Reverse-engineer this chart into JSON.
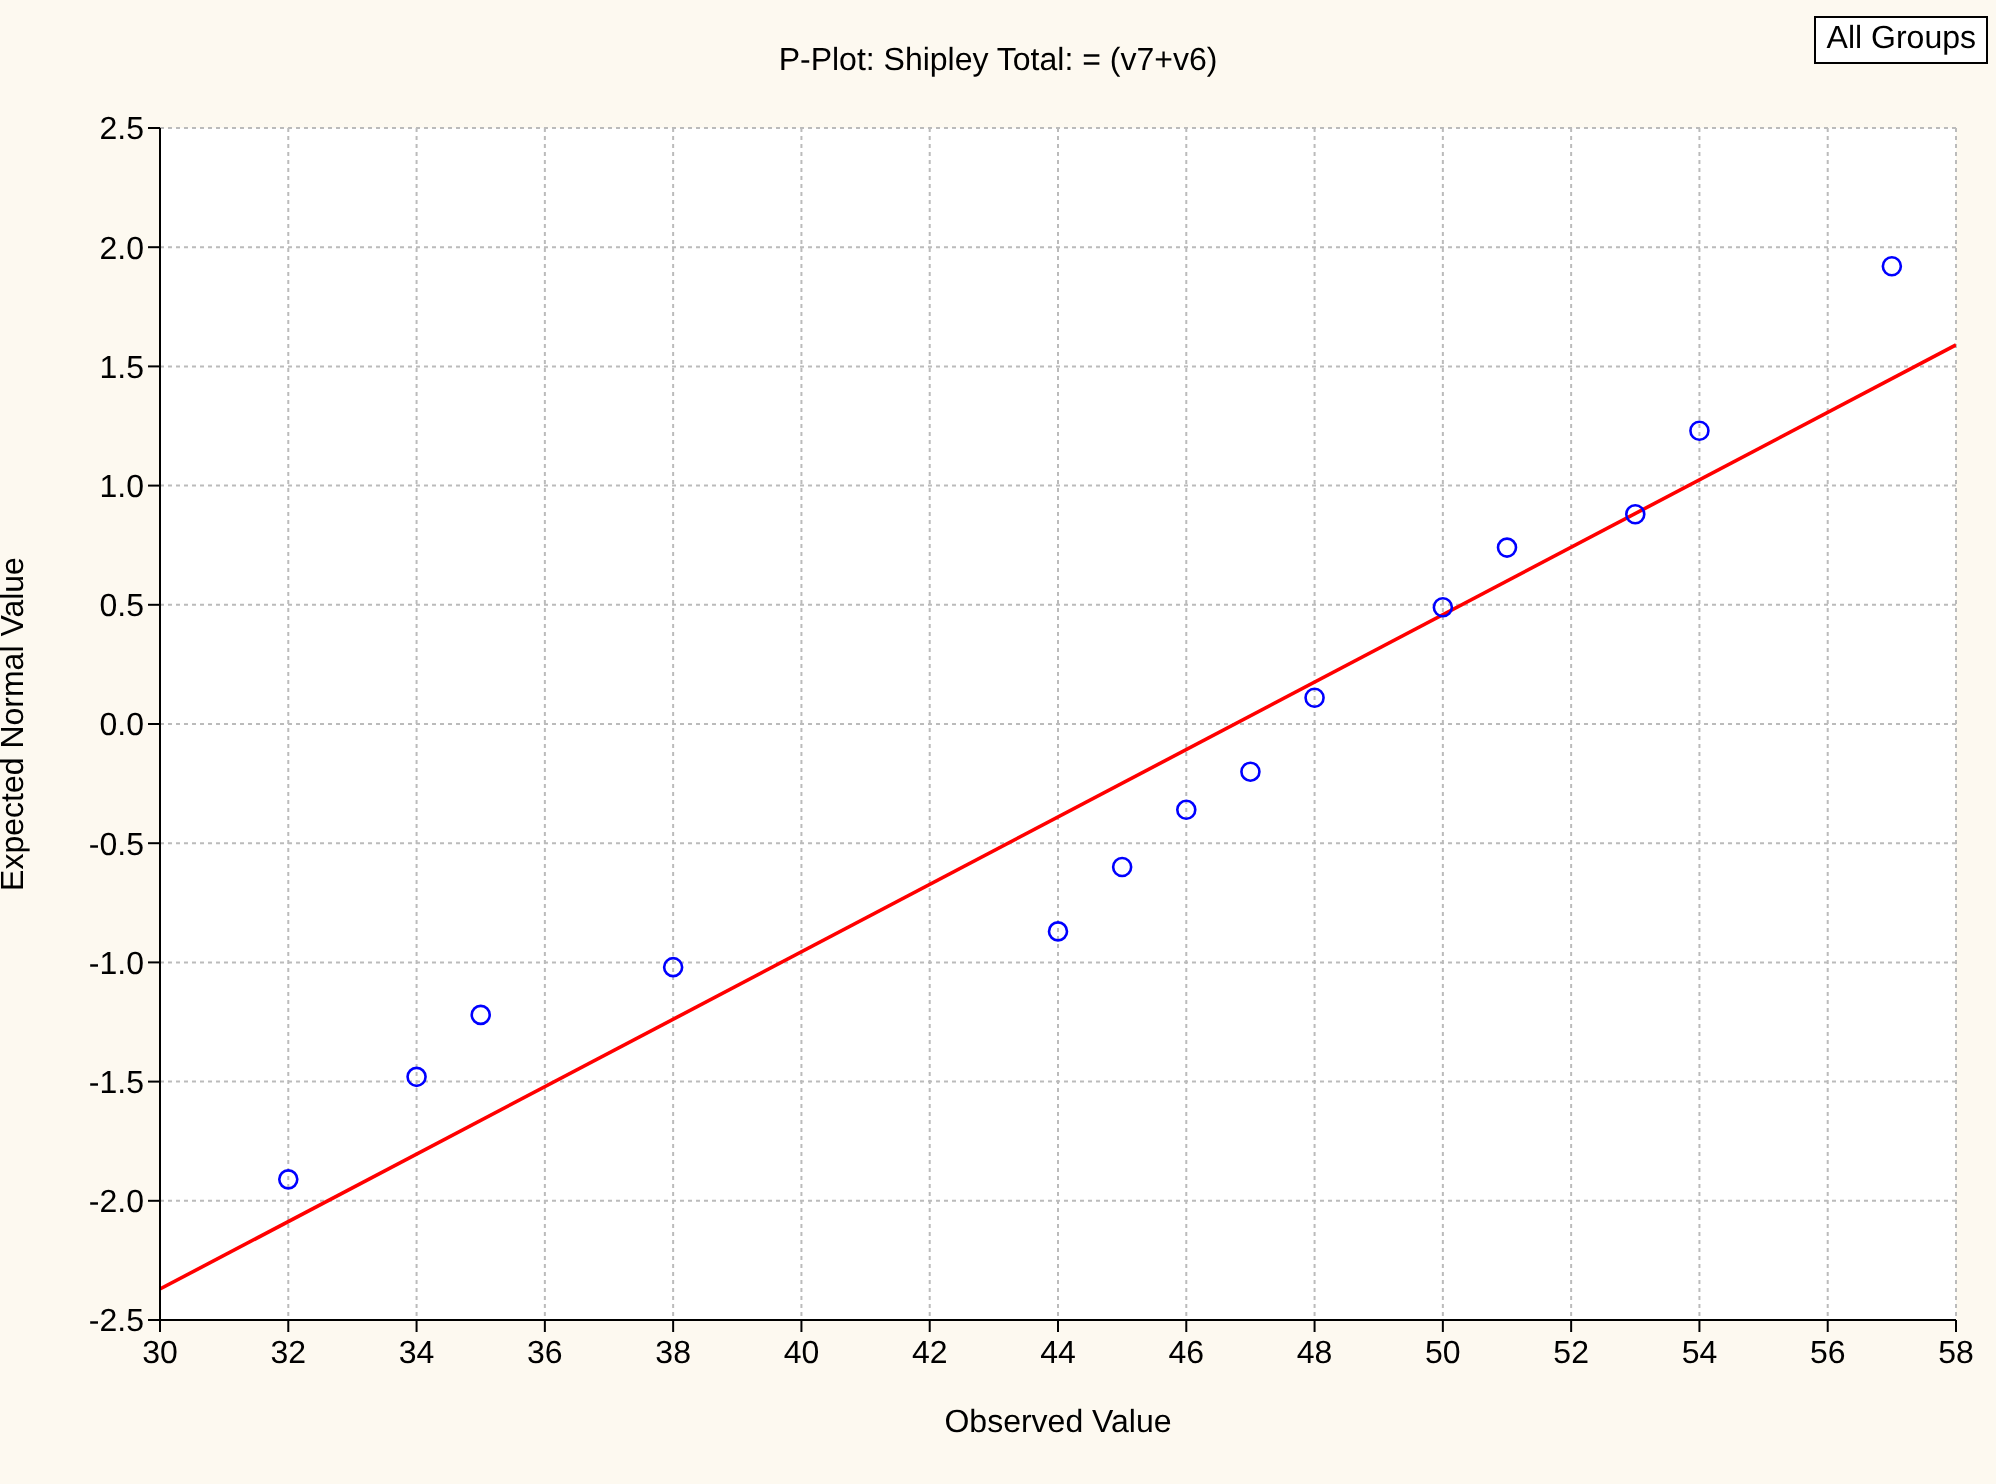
{
  "chart_data": {
    "type": "scatter",
    "title": "P-Plot: Shipley Total: = (v7+v6)",
    "xlabel": "Observed Value",
    "ylabel": "Expected Normal Value",
    "annotations": [
      "All Groups"
    ],
    "xlim": [
      30,
      58
    ],
    "xticks": [
      30,
      32,
      34,
      36,
      38,
      40,
      42,
      44,
      46,
      48,
      50,
      52,
      54,
      56,
      58
    ],
    "ylim": [
      -2.5,
      2.5
    ],
    "yticks": [
      {
        "value": -2.5,
        "label": "-2.5"
      },
      {
        "value": -2,
        "label": "-2.0"
      },
      {
        "value": -1.5,
        "label": "-1.5"
      },
      {
        "value": -1,
        "label": "-1.0"
      },
      {
        "value": -0.5,
        "label": "-0.5"
      },
      {
        "value": 0,
        "label": "0.0"
      },
      {
        "value": 0.5,
        "label": "0.5"
      },
      {
        "value": 1,
        "label": "1.0"
      },
      {
        "value": 1.5,
        "label": "1.5"
      },
      {
        "value": 2,
        "label": "2.0"
      },
      {
        "value": 2.5,
        "label": "2.5"
      }
    ],
    "grid": true,
    "series": [
      {
        "marker": "circle",
        "color": "#0000ff",
        "x": [
          32,
          34,
          35,
          38,
          44,
          45,
          46,
          47,
          48,
          50,
          51,
          53,
          54,
          57
        ],
        "values": [
          -1.91,
          -1.48,
          -1.22,
          -1.02,
          -0.87,
          -0.6,
          -0.36,
          -0.2,
          0.11,
          0.49,
          0.74,
          0.88,
          1.23,
          1.92
        ]
      },
      {
        "type": "line",
        "color": "#ff0000",
        "line_style": "solid",
        "x": [
          30,
          58
        ],
        "values": [
          -2.37,
          1.59
        ]
      }
    ]
  }
}
